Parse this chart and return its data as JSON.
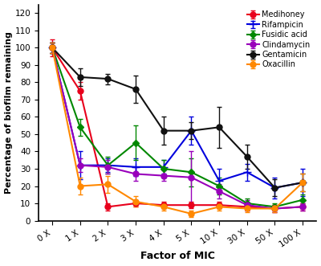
{
  "x_labels": [
    "0 X",
    "1 X",
    "2 X",
    "3 X",
    "4 X",
    "5 X",
    "10 X",
    "30 X",
    "50 X",
    "100 X"
  ],
  "x_positions": [
    0,
    1,
    2,
    3,
    4,
    5,
    6,
    7,
    8,
    9
  ],
  "series": [
    {
      "name": "Medihoney",
      "color": "#e8001c",
      "marker": "o",
      "y": [
        100,
        75,
        8,
        10,
        9,
        9,
        9,
        8,
        7,
        8
      ],
      "yerr": [
        5,
        5,
        2,
        2,
        2,
        2,
        2,
        2,
        2,
        2
      ]
    },
    {
      "name": "Rifampicin",
      "color": "#0000dd",
      "marker": "*",
      "y": [
        100,
        32,
        32,
        31,
        31,
        52,
        23,
        28,
        19,
        22
      ],
      "yerr": [
        3,
        8,
        4,
        5,
        4,
        8,
        7,
        5,
        6,
        8
      ]
    },
    {
      "name": "Fusidic acid",
      "color": "#008800",
      "marker": "D",
      "y": [
        100,
        54,
        32,
        45,
        30,
        28,
        20,
        10,
        8,
        12
      ],
      "yerr": [
        3,
        5,
        5,
        10,
        5,
        8,
        5,
        3,
        2,
        3
      ]
    },
    {
      "name": "Clindamycin",
      "color": "#9900bb",
      "marker": "o",
      "y": [
        100,
        32,
        31,
        27,
        26,
        25,
        17,
        9,
        7,
        8
      ],
      "yerr": [
        3,
        4,
        4,
        4,
        3,
        15,
        4,
        3,
        2,
        2
      ]
    },
    {
      "name": "Gentamicin",
      "color": "#111111",
      "marker": "o",
      "y": [
        100,
        83,
        82,
        76,
        52,
        52,
        54,
        37,
        19,
        22
      ],
      "yerr": [
        3,
        5,
        3,
        8,
        8,
        5,
        12,
        7,
        5,
        5
      ]
    },
    {
      "name": "Oxacillin",
      "color": "#ff8800",
      "marker": "o",
      "y": [
        100,
        20,
        21,
        11,
        8,
        4,
        8,
        7,
        7,
        22
      ],
      "yerr": [
        3,
        5,
        5,
        3,
        2,
        2,
        2,
        2,
        2,
        5
      ]
    }
  ],
  "ylabel": "Percentage of biofilm remaining",
  "xlabel": "Factor of MIC",
  "ylim": [
    0,
    125
  ],
  "yticks": [
    0,
    10,
    20,
    30,
    40,
    50,
    60,
    70,
    80,
    90,
    100,
    110,
    120
  ],
  "ytick_labels": [
    "0",
    "10",
    "20",
    "30",
    "40",
    "50",
    "60",
    "70",
    "80",
    "90",
    "100",
    "110",
    "120"
  ],
  "bg_color": "#ffffff"
}
